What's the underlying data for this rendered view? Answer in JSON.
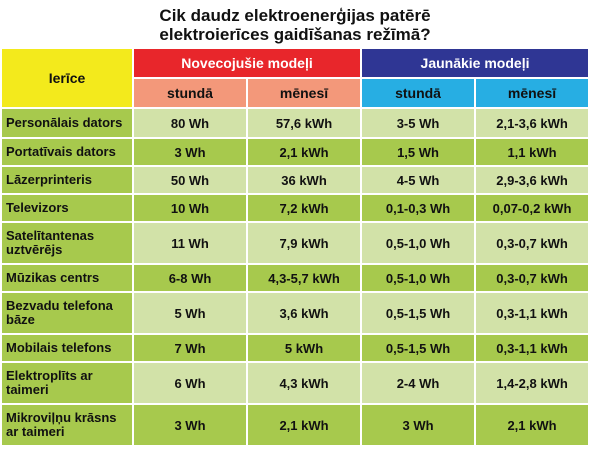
{
  "title_line1": "Cik daudz elektroenerģijas patērē",
  "title_line2": "elektroierīces gaidīšanas režīmā?",
  "chart_data": {
    "type": "table",
    "header": {
      "device": "Ierīce",
      "old_models": "Novecojušie modeļi",
      "new_models": "Jaunākie modeļi",
      "per_hour": "stundā",
      "per_month": "mēnesī"
    },
    "colors": {
      "device_header": "#f3ea1c",
      "old_header": "#e8262b",
      "new_header": "#2f3694",
      "old_sub": "#f3987a",
      "new_sub": "#27aee3",
      "row_dark": "#a7c94d",
      "row_light": "#d2e2a8"
    },
    "rows": [
      {
        "device": "Personālais dators",
        "old_hour": "80 Wh",
        "old_month": "57,6 kWh",
        "new_hour": "3-5 Wh",
        "new_month": "2,1-3,6 kWh"
      },
      {
        "device": "Portatīvais dators",
        "old_hour": "3 Wh",
        "old_month": "2,1 kWh",
        "new_hour": "1,5 Wh",
        "new_month": "1,1 kWh"
      },
      {
        "device": "Lāzerprinteris",
        "old_hour": "50 Wh",
        "old_month": "36 kWh",
        "new_hour": "4-5 Wh",
        "new_month": "2,9-3,6 kWh"
      },
      {
        "device": "Televizors",
        "old_hour": "10 Wh",
        "old_month": "7,2 kWh",
        "new_hour": "0,1-0,3 Wh",
        "new_month": "0,07-0,2 kWh"
      },
      {
        "device": "Satelītantenas uztvērējs",
        "old_hour": "11 Wh",
        "old_month": "7,9 kWh",
        "new_hour": "0,5-1,0 Wh",
        "new_month": "0,3-0,7 kWh"
      },
      {
        "device": "Mūzikas centrs",
        "old_hour": "6-8 Wh",
        "old_month": "4,3-5,7 kWh",
        "new_hour": "0,5-1,0 Wh",
        "new_month": "0,3-0,7 kWh"
      },
      {
        "device": "Bezvadu telefona bāze",
        "old_hour": "5 Wh",
        "old_month": "3,6 kWh",
        "new_hour": "0,5-1,5 Wh",
        "new_month": "0,3-1,1 kWh"
      },
      {
        "device": "Mobilais telefons",
        "old_hour": "7 Wh",
        "old_month": "5 kWh",
        "new_hour": "0,5-1,5 Wh",
        "new_month": "0,3-1,1 kWh"
      },
      {
        "device": "Elektroplīts ar taimeri",
        "old_hour": "6 Wh",
        "old_month": "4,3 kWh",
        "new_hour": "2-4 Wh",
        "new_month": "1,4-2,8 kWh"
      },
      {
        "device": "Mikroviļņu krāsns ar taimeri",
        "old_hour": "3 Wh",
        "old_month": "2,1 kWh",
        "new_hour": "3 Wh",
        "new_month": "2,1 kWh"
      }
    ]
  }
}
